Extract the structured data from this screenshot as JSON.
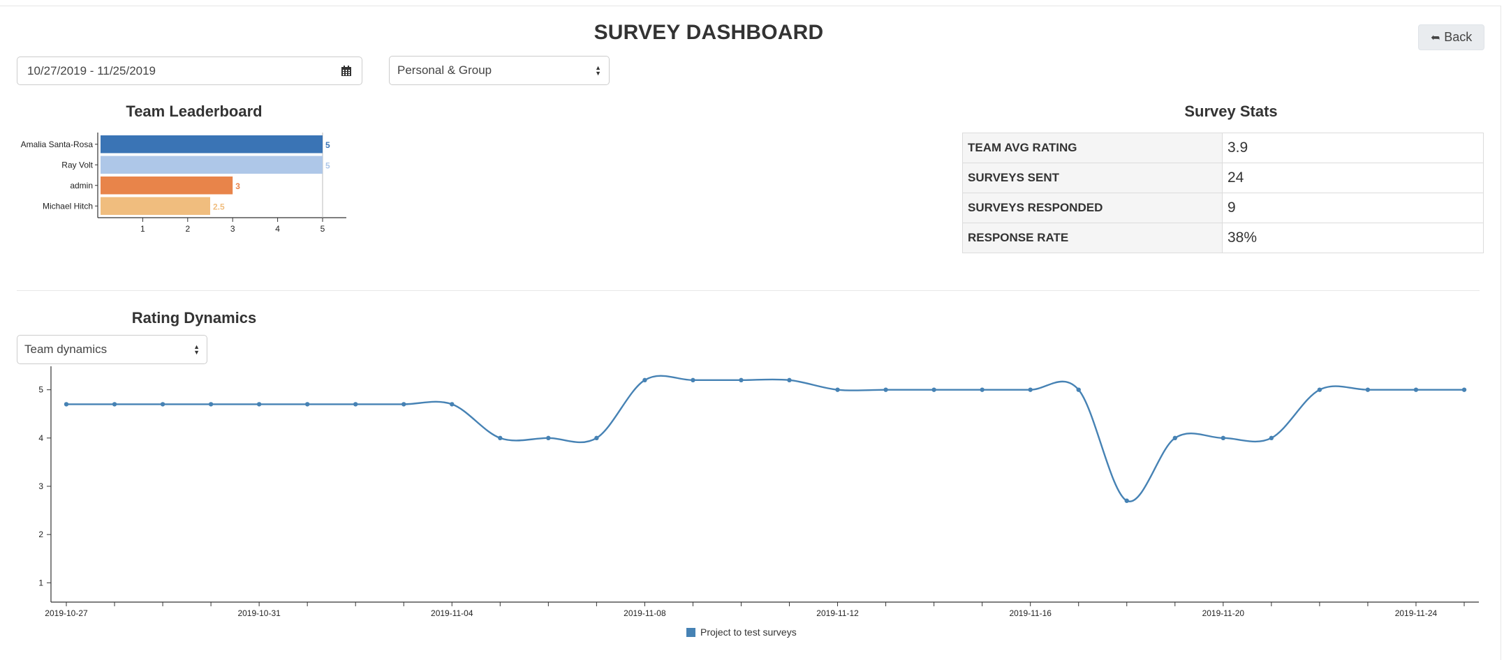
{
  "header": {
    "title": "SURVEY DASHBOARD",
    "back_label": "Back",
    "back_icon": "reply-arrow-icon"
  },
  "filters": {
    "date_range": "10/27/2019 - 11/25/2019",
    "date_icon": "calendar-icon",
    "scope": "Personal & Group",
    "dynamics_mode": "Team dynamics"
  },
  "leaderboard": {
    "title": "Team Leaderboard"
  },
  "stats": {
    "title": "Survey Stats",
    "rows": [
      {
        "label": "TEAM AVG RATING",
        "value": "3.9"
      },
      {
        "label": "SURVEYS SENT",
        "value": "24"
      },
      {
        "label": "SURVEYS RESPONDED",
        "value": "9"
      },
      {
        "label": "RESPONSE RATE",
        "value": "38%"
      }
    ]
  },
  "rating_dynamics": {
    "title": "Rating Dynamics"
  },
  "colors": {
    "accent": "#4682b4",
    "bar_1": "#3a74b5",
    "bar_2": "#aec7e8",
    "bar_3": "#e8844a",
    "bar_4": "#f0bd7e"
  },
  "chart_data": [
    {
      "type": "bar",
      "orientation": "horizontal",
      "title": "Team Leaderboard",
      "categories": [
        "Amalia Santa-Rosa",
        "Ray Volt",
        "admin",
        "Michael Hitch"
      ],
      "values": [
        5,
        5,
        3,
        2.5
      ],
      "data_labels": [
        "5",
        "5",
        "3",
        "2.5"
      ],
      "colors": [
        "#3a74b5",
        "#aec7e8",
        "#e8844a",
        "#f0bd7e"
      ],
      "xlim": [
        0,
        5
      ],
      "x_ticks": [
        "1",
        "2",
        "3",
        "4",
        "5"
      ]
    },
    {
      "type": "line",
      "title": "Rating Dynamics",
      "x": [
        "2019-10-27",
        "2019-10-28",
        "2019-10-29",
        "2019-10-30",
        "2019-10-31",
        "2019-11-01",
        "2019-11-02",
        "2019-11-03",
        "2019-11-04",
        "2019-11-05",
        "2019-11-06",
        "2019-11-07",
        "2019-11-08",
        "2019-11-09",
        "2019-11-10",
        "2019-11-11",
        "2019-11-12",
        "2019-11-13",
        "2019-11-14",
        "2019-11-15",
        "2019-11-16",
        "2019-11-17",
        "2019-11-18",
        "2019-11-19",
        "2019-11-20",
        "2019-11-21",
        "2019-11-22",
        "2019-11-23",
        "2019-11-24",
        "2019-11-25"
      ],
      "series": [
        {
          "name": "Project to test surveys",
          "color": "#4682b4",
          "values": [
            4.7,
            4.7,
            4.7,
            4.7,
            4.7,
            4.7,
            4.7,
            4.7,
            4.7,
            4.0,
            4.0,
            4.0,
            5.2,
            5.2,
            5.2,
            5.2,
            5.0,
            5.0,
            5.0,
            5.0,
            5.0,
            5.0,
            2.7,
            4.0,
            4.0,
            4.0,
            5.0,
            5.0,
            5.0,
            5.0
          ]
        }
      ],
      "x_tick_labels": [
        "2019-10-27",
        "2019-10-31",
        "2019-11-04",
        "2019-11-08",
        "2019-11-12",
        "2019-11-16",
        "2019-11-20",
        "2019-11-24"
      ],
      "y_ticks": [
        "1",
        "2",
        "3",
        "4",
        "5"
      ],
      "ylim": [
        0.6,
        5.4
      ],
      "legend": "bottom-center"
    }
  ]
}
